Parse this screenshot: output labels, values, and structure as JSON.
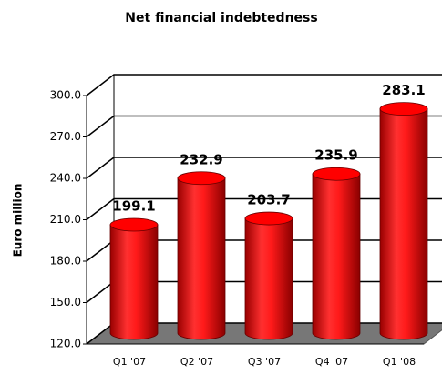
{
  "chart_data": {
    "type": "bar",
    "title": "Net financial indebtedness",
    "y_label": "Euro million",
    "categories": [
      "Q1 '07",
      "Q2 '07",
      "Q3 '07",
      "Q4 '07",
      "Q1 '08"
    ],
    "values": [
      199.1,
      232.9,
      203.7,
      235.9,
      283.1
    ],
    "color": "#ff0000",
    "ylim": [
      120,
      300
    ],
    "yticks": [
      {
        "value": 120,
        "label": "120.0"
      },
      {
        "value": 150,
        "label": "150.0"
      },
      {
        "value": 180,
        "label": "180.0"
      },
      {
        "value": 210,
        "label": "210.0"
      },
      {
        "value": 240,
        "label": "240.0"
      },
      {
        "value": 270,
        "label": "270.0"
      },
      {
        "value": 300,
        "label": "300.0"
      }
    ],
    "grid": true
  }
}
